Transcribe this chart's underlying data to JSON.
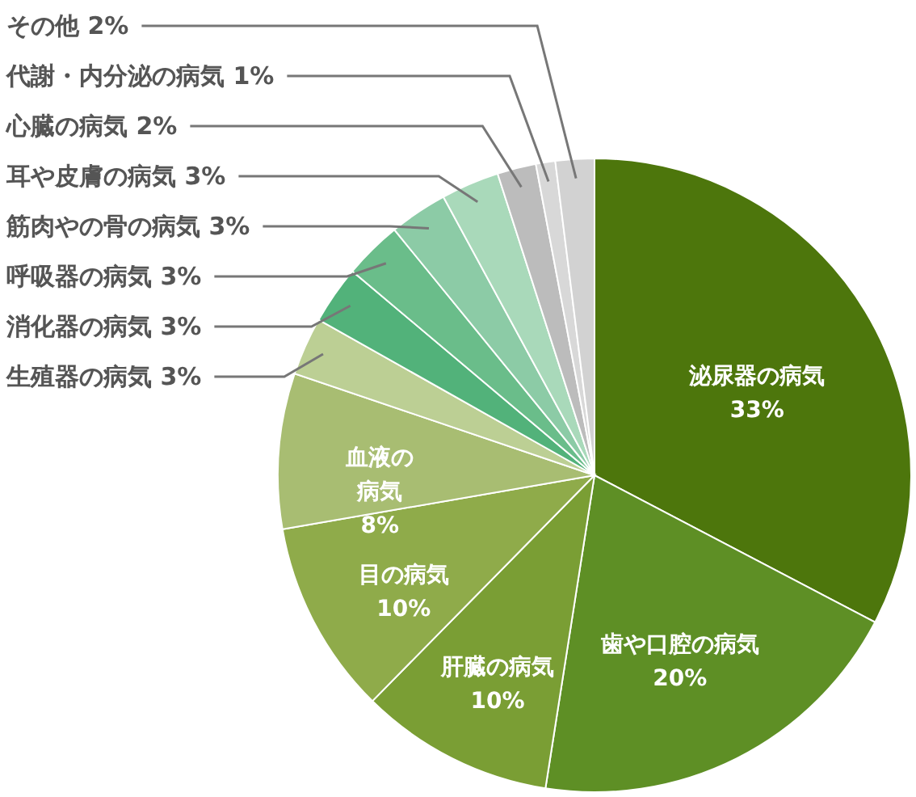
{
  "chart_data": {
    "type": "pie",
    "categories": [
      "泌尿器の病気",
      "歯や口腔の病気",
      "肝臓の病気",
      "目の病気",
      "血液の病気",
      "生殖器の病気",
      "消化器の病気",
      "呼吸器の病気",
      "筋肉やの骨の病気",
      "耳や皮膚の病気",
      "心臓の病気",
      "代謝・内分泌の病気",
      "その他"
    ],
    "values": [
      33,
      20,
      10,
      10,
      8,
      3,
      3,
      3,
      3,
      3,
      2,
      1,
      2
    ],
    "value_labels": [
      "33%",
      "20%",
      "10%",
      "10%",
      "8%",
      "3%",
      "3%",
      "3%",
      "3%",
      "3%",
      "2%",
      "1%",
      "2%"
    ],
    "colors": [
      "#4d760c",
      "#5e8f25",
      "#7a9e34",
      "#8fab4a",
      "#a8bd72",
      "#bccf94",
      "#52b27a",
      "#6abd8a",
      "#8ccba6",
      "#a9d9ba",
      "#bcbcbc",
      "#d8d8d8",
      "#d2d2d2"
    ]
  }
}
